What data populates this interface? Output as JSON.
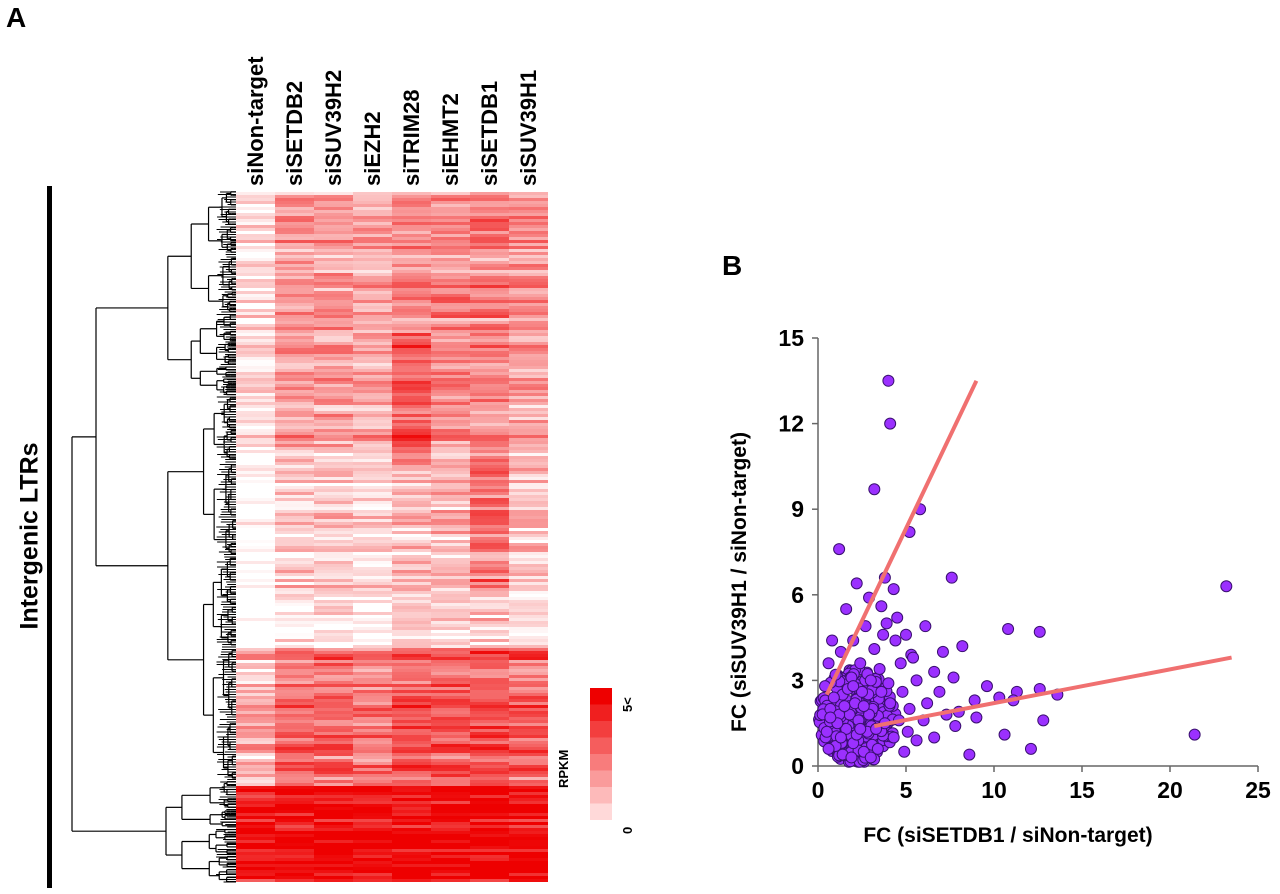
{
  "panels": {
    "a_label": "A",
    "b_label": "B"
  },
  "heatmap": {
    "row_group_label": "Intergenic LTRs",
    "columns": [
      "siNon-target",
      "siSETDB2",
      "siSUV39H2",
      "siEZH2",
      "siTRIM28",
      "siEHMT2",
      "siSETDB1",
      "siSUV39H1"
    ],
    "legend": {
      "title": "RPKM",
      "max_label": "5<",
      "min_label": "0",
      "min": 0,
      "max": 5
    },
    "color_low": "#ffffff",
    "color_high": "#ee0000"
  },
  "chart_data": {
    "type": "scatter",
    "title": "",
    "xlabel": "FC (siSETDB1 / siNon-target)",
    "ylabel": "FC (siSUV39H1 / siNon-target)",
    "xlim": [
      0,
      25
    ],
    "ylim": [
      0,
      15
    ],
    "xticks": [
      0,
      5,
      10,
      15,
      20,
      25
    ],
    "yticks": [
      0,
      3,
      6,
      9,
      12,
      15
    ],
    "point_color": "#9b30ff",
    "point_edge_color": "#3a1070",
    "line_color": "#f07070",
    "trend_lines": [
      {
        "x": [
          0.5,
          9.0
        ],
        "y": [
          2.5,
          13.5
        ]
      },
      {
        "x": [
          3.2,
          23.5
        ],
        "y": [
          1.4,
          3.8
        ]
      }
    ],
    "points": [
      [
        4.0,
        13.5
      ],
      [
        4.1,
        12.0
      ],
      [
        3.2,
        9.7
      ],
      [
        5.8,
        9.0
      ],
      [
        5.2,
        8.2
      ],
      [
        1.2,
        7.6
      ],
      [
        2.2,
        6.4
      ],
      [
        7.6,
        6.6
      ],
      [
        23.2,
        6.3
      ],
      [
        3.8,
        6.6
      ],
      [
        4.3,
        6.2
      ],
      [
        2.9,
        5.9
      ],
      [
        3.6,
        5.6
      ],
      [
        6.1,
        4.9
      ],
      [
        5.0,
        4.6
      ],
      [
        8.2,
        4.2
      ],
      [
        10.8,
        4.8
      ],
      [
        12.6,
        4.7
      ],
      [
        7.1,
        4.0
      ],
      [
        5.3,
        3.9
      ],
      [
        5.4,
        3.8
      ],
      [
        6.6,
        3.3
      ],
      [
        7.7,
        3.1
      ],
      [
        9.6,
        2.8
      ],
      [
        11.3,
        2.6
      ],
      [
        12.6,
        2.7
      ],
      [
        13.6,
        2.5
      ],
      [
        11.1,
        2.3
      ],
      [
        8.9,
        2.3
      ],
      [
        10.3,
        2.4
      ],
      [
        8.0,
        1.9
      ],
      [
        9.0,
        1.7
      ],
      [
        12.8,
        1.6
      ],
      [
        7.8,
        1.4
      ],
      [
        10.6,
        1.1
      ],
      [
        12.1,
        0.6
      ],
      [
        8.6,
        0.4
      ],
      [
        21.4,
        1.1
      ],
      [
        6.6,
        1.0
      ],
      [
        6.2,
        2.2
      ],
      [
        5.6,
        3.0
      ],
      [
        4.7,
        3.6
      ],
      [
        4.4,
        4.4
      ],
      [
        3.9,
        5.0
      ],
      [
        2.7,
        4.9
      ],
      [
        1.6,
        5.5
      ],
      [
        0.8,
        4.4
      ],
      [
        0.6,
        3.6
      ],
      [
        0.4,
        2.8
      ],
      [
        0.7,
        2.0
      ],
      [
        0.5,
        1.2
      ],
      [
        1.0,
        0.7
      ],
      [
        1.4,
        0.4
      ],
      [
        2.0,
        0.8
      ],
      [
        2.6,
        0.5
      ],
      [
        3.4,
        0.6
      ],
      [
        4.3,
        1.0
      ],
      [
        3.8,
        1.5
      ],
      [
        3.1,
        2.0
      ],
      [
        2.5,
        2.6
      ],
      [
        1.9,
        3.1
      ],
      [
        1.4,
        2.5
      ],
      [
        1.8,
        1.8
      ],
      [
        2.3,
        1.6
      ],
      [
        2.8,
        1.2
      ],
      [
        1.6,
        1.3
      ],
      [
        1.2,
        1.8
      ],
      [
        2.1,
        2.2
      ],
      [
        3.0,
        3.0
      ],
      [
        3.6,
        2.6
      ],
      [
        4.1,
        2.2
      ],
      [
        4.6,
        1.6
      ],
      [
        5.1,
        1.2
      ],
      [
        5.6,
        0.9
      ],
      [
        6.0,
        1.6
      ],
      [
        2.4,
        3.6
      ],
      [
        3.2,
        4.1
      ],
      [
        1.0,
        3.2
      ],
      [
        0.9,
        2.4
      ],
      [
        1.3,
        1.0
      ],
      [
        2.2,
        1.1
      ],
      [
        2.9,
        1.8
      ],
      [
        3.5,
        3.4
      ],
      [
        4.0,
        2.9
      ],
      [
        1.7,
        2.7
      ],
      [
        2.6,
        2.1
      ],
      [
        1.5,
        2.1
      ],
      [
        2.0,
        2.8
      ],
      [
        3.3,
        1.3
      ],
      [
        2.4,
        1.3
      ],
      [
        1.1,
        1.5
      ],
      [
        0.7,
        1.7
      ],
      [
        4.8,
        2.6
      ],
      [
        5.2,
        2.0
      ],
      [
        6.9,
        2.6
      ],
      [
        7.3,
        1.8
      ],
      [
        3.7,
        4.6
      ],
      [
        4.5,
        5.2
      ],
      [
        1.3,
        4.0
      ],
      [
        2.0,
        4.4
      ],
      [
        0.6,
        0.6
      ],
      [
        1.9,
        0.3
      ],
      [
        3.0,
        0.3
      ],
      [
        4.9,
        0.5
      ]
    ]
  }
}
